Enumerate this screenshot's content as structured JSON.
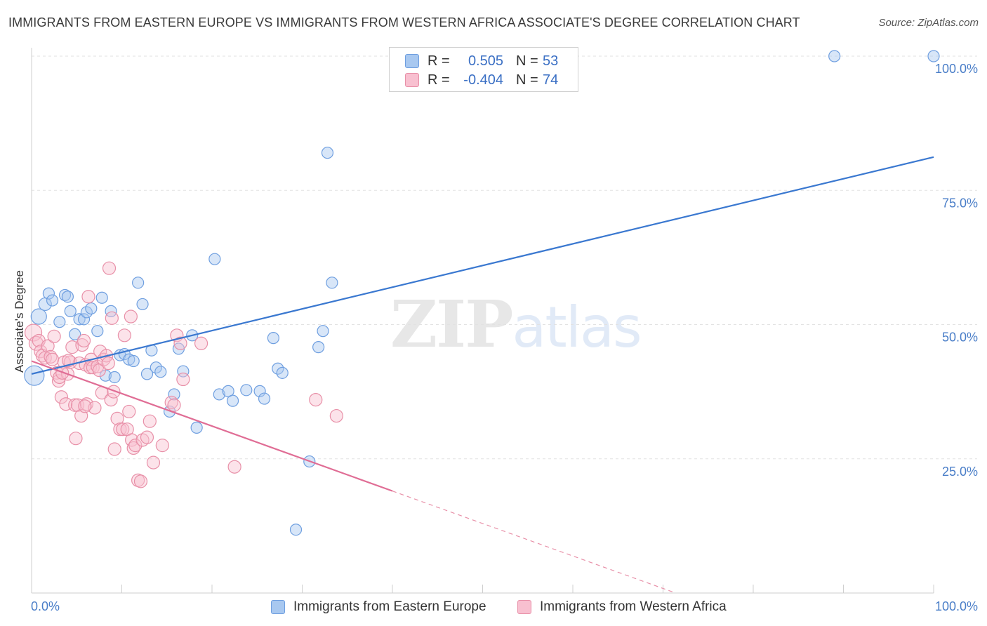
{
  "header": {
    "title": "IMMIGRANTS FROM EASTERN EUROPE VS IMMIGRANTS FROM WESTERN AFRICA ASSOCIATE'S DEGREE CORRELATION CHART",
    "source": "Source: ZipAtlas.com"
  },
  "watermark": {
    "zip": "ZIP",
    "atlas": "atlas"
  },
  "legend": {
    "rows": [
      {
        "r_label": "R =",
        "r_value": "0.505",
        "n_label": "N =",
        "n_value": "53",
        "color": "#a8c8f0",
        "border": "#6f9fe0"
      },
      {
        "r_label": "R =",
        "r_value": "-0.404",
        "n_label": "N =",
        "n_value": "74",
        "color": "#f8c0d0",
        "border": "#e890a8"
      }
    ]
  },
  "chart_data": {
    "type": "scatter",
    "title": "IMMIGRANTS FROM EASTERN EUROPE VS IMMIGRANTS FROM WESTERN AFRICA ASSOCIATE'S DEGREE CORRELATION CHART",
    "xlabel": "",
    "ylabel": "Associate's Degree",
    "xlim": [
      0,
      100
    ],
    "ylim": [
      0,
      100
    ],
    "x_tick_labels": [
      "0.0%",
      "100.0%"
    ],
    "y_ticks": [
      25,
      50,
      75,
      100
    ],
    "y_tick_labels": [
      "25.0%",
      "50.0%",
      "75.0%",
      "100.0%"
    ],
    "grid": true,
    "legend_position": "top-center",
    "series": [
      {
        "name": "Immigrants from Eastern Europe",
        "color": "#6f9fe0",
        "fill": "#a8c8f0",
        "trend": {
          "x0": 0,
          "y0": 40.8,
          "x1": 100,
          "y1": 81.2,
          "dashed_from": null
        },
        "points": [
          [
            0.3,
            40.5,
            14
          ],
          [
            0.8,
            51.5,
            11
          ],
          [
            1.5,
            53.8,
            9
          ],
          [
            1.9,
            55.8,
            8
          ],
          [
            2.3,
            54.5,
            8
          ],
          [
            3.1,
            50.5,
            8
          ],
          [
            3.7,
            55.5,
            8
          ],
          [
            4.0,
            55.2,
            8
          ],
          [
            4.3,
            52.5,
            8
          ],
          [
            4.8,
            48.2,
            8
          ],
          [
            5.3,
            51.0,
            8
          ],
          [
            5.8,
            51.0,
            8
          ],
          [
            6.1,
            52.3,
            8
          ],
          [
            6.6,
            53.0,
            8
          ],
          [
            7.3,
            48.8,
            8
          ],
          [
            7.8,
            55.0,
            8
          ],
          [
            8.2,
            40.5,
            8
          ],
          [
            8.8,
            52.5,
            8
          ],
          [
            9.2,
            40.2,
            8
          ],
          [
            9.8,
            44.3,
            8
          ],
          [
            10.3,
            44.5,
            8
          ],
          [
            10.8,
            43.5,
            8
          ],
          [
            11.3,
            43.2,
            8
          ],
          [
            11.8,
            57.8,
            8
          ],
          [
            12.3,
            53.8,
            8
          ],
          [
            12.8,
            40.8,
            8
          ],
          [
            13.3,
            45.2,
            8
          ],
          [
            13.8,
            42.0,
            8
          ],
          [
            14.3,
            41.2,
            8
          ],
          [
            15.3,
            33.8,
            8
          ],
          [
            15.8,
            37.0,
            8
          ],
          [
            16.3,
            45.5,
            8
          ],
          [
            16.8,
            41.3,
            8
          ],
          [
            17.8,
            48.0,
            8
          ],
          [
            18.3,
            30.8,
            8
          ],
          [
            20.3,
            62.2,
            8
          ],
          [
            20.8,
            37.0,
            8
          ],
          [
            21.8,
            37.6,
            8
          ],
          [
            22.3,
            35.8,
            8
          ],
          [
            23.8,
            37.8,
            8
          ],
          [
            25.3,
            37.6,
            8
          ],
          [
            25.8,
            36.2,
            8
          ],
          [
            26.8,
            47.5,
            8
          ],
          [
            27.3,
            41.8,
            8
          ],
          [
            27.8,
            41.0,
            8
          ],
          [
            29.3,
            11.8,
            8
          ],
          [
            30.8,
            24.5,
            8
          ],
          [
            31.8,
            45.8,
            8
          ],
          [
            32.3,
            48.8,
            8
          ],
          [
            32.8,
            82.0,
            8
          ],
          [
            33.3,
            57.8,
            8
          ],
          [
            89.0,
            100.0,
            8
          ],
          [
            100.0,
            100.0,
            8
          ]
        ]
      },
      {
        "name": "Immigrants from Western Africa",
        "color": "#e890a8",
        "fill": "#f8c0d0",
        "trend": {
          "x0": 0,
          "y0": 43.2,
          "x1": 100,
          "y1": -17.3,
          "dashed_from": 40.0
        },
        "points": [
          [
            0.2,
            48.5,
            12
          ],
          [
            0.5,
            46.5,
            10
          ],
          [
            0.8,
            47.0,
            9
          ],
          [
            1.0,
            45.0,
            9
          ],
          [
            1.2,
            44.2,
            9
          ],
          [
            1.5,
            43.8,
            9
          ],
          [
            1.8,
            46.0,
            9
          ],
          [
            2.1,
            44.0,
            9
          ],
          [
            2.3,
            43.5,
            9
          ],
          [
            2.5,
            47.8,
            9
          ],
          [
            2.8,
            41.0,
            9
          ],
          [
            3.0,
            39.5,
            9
          ],
          [
            3.1,
            40.2,
            9
          ],
          [
            3.3,
            36.5,
            9
          ],
          [
            3.6,
            43.0,
            9
          ],
          [
            3.8,
            35.2,
            9
          ],
          [
            4.0,
            40.8,
            9
          ],
          [
            4.3,
            43.0,
            9
          ],
          [
            4.5,
            45.8,
            9
          ],
          [
            4.8,
            35.0,
            9
          ],
          [
            4.9,
            28.8,
            9
          ],
          [
            5.1,
            35.0,
            9
          ],
          [
            5.3,
            42.8,
            9
          ],
          [
            5.5,
            33.0,
            9
          ],
          [
            5.6,
            46.2,
            9
          ],
          [
            5.8,
            47.0,
            9
          ],
          [
            6.0,
            42.5,
            9
          ],
          [
            6.1,
            35.2,
            9
          ],
          [
            6.3,
            55.2,
            9
          ],
          [
            6.5,
            42.0,
            9
          ],
          [
            6.6,
            43.5,
            9
          ],
          [
            6.8,
            42.0,
            9
          ],
          [
            7.0,
            34.5,
            9
          ],
          [
            7.3,
            42.2,
            9
          ],
          [
            7.5,
            41.5,
            9
          ],
          [
            7.6,
            45.0,
            9
          ],
          [
            7.8,
            37.3,
            9
          ],
          [
            8.0,
            43.5,
            9
          ],
          [
            8.3,
            44.2,
            9
          ],
          [
            8.5,
            42.8,
            9
          ],
          [
            8.6,
            60.5,
            9
          ],
          [
            8.8,
            36.0,
            9
          ],
          [
            8.9,
            51.2,
            9
          ],
          [
            9.1,
            37.5,
            9
          ],
          [
            9.2,
            26.8,
            9
          ],
          [
            9.5,
            32.5,
            9
          ],
          [
            9.8,
            30.5,
            9
          ],
          [
            10.1,
            30.5,
            9
          ],
          [
            10.3,
            48.0,
            9
          ],
          [
            10.6,
            30.5,
            9
          ],
          [
            10.8,
            33.8,
            9
          ],
          [
            11.0,
            51.5,
            9
          ],
          [
            11.1,
            28.5,
            9
          ],
          [
            11.3,
            27.0,
            9
          ],
          [
            11.5,
            27.5,
            9
          ],
          [
            11.8,
            21.0,
            9
          ],
          [
            12.1,
            20.8,
            9
          ],
          [
            12.3,
            28.5,
            9
          ],
          [
            12.8,
            29.0,
            9
          ],
          [
            13.1,
            32.0,
            9
          ],
          [
            13.5,
            24.3,
            9
          ],
          [
            14.5,
            27.5,
            9
          ],
          [
            15.5,
            35.5,
            9
          ],
          [
            15.8,
            35.0,
            9
          ],
          [
            16.1,
            48.0,
            9
          ],
          [
            16.5,
            46.5,
            9
          ],
          [
            16.8,
            39.8,
            9
          ],
          [
            18.8,
            46.5,
            9
          ],
          [
            22.5,
            23.5,
            9
          ],
          [
            31.5,
            36.0,
            9
          ],
          [
            33.8,
            33.0,
            9
          ],
          [
            3.4,
            41.0,
            9
          ],
          [
            4.1,
            43.3,
            9
          ],
          [
            5.9,
            34.8,
            9
          ]
        ]
      }
    ]
  },
  "bottom_legend": [
    {
      "label": "Immigrants from Eastern Europe",
      "color": "#a8c8f0",
      "border": "#6f9fe0"
    },
    {
      "label": "Immigrants from Western Africa",
      "color": "#f8c0d0",
      "border": "#e890a8"
    }
  ]
}
